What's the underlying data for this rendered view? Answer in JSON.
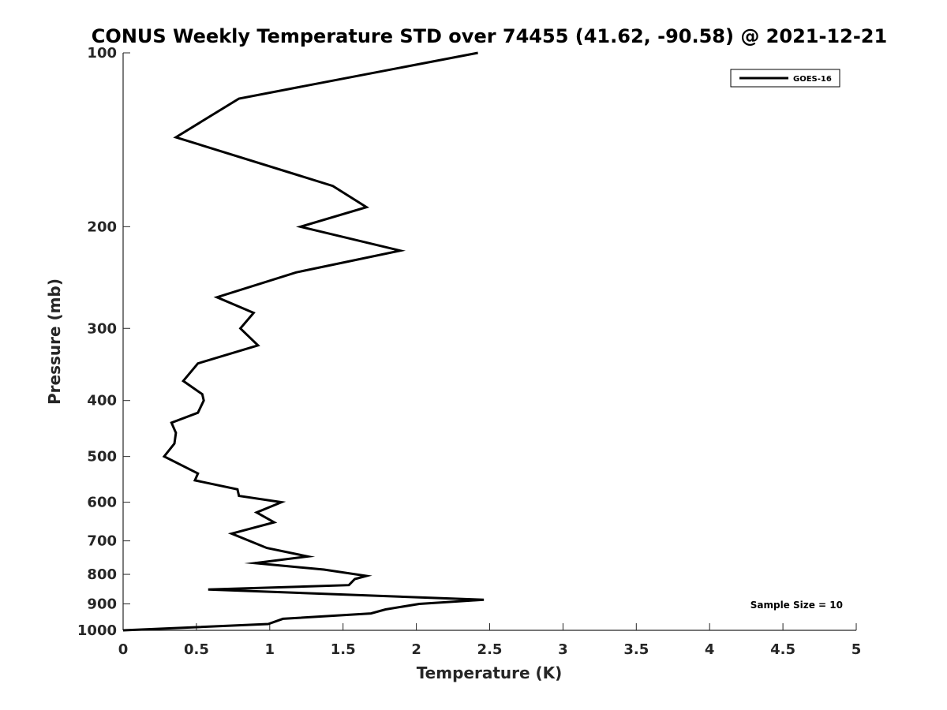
{
  "chart_data": {
    "type": "line",
    "title": "CONUS Weekly Temperature STD over 74455 (41.62, -90.58) @ 2021-12-21",
    "xlabel": "Temperature (K)",
    "ylabel": "Pressure (mb)",
    "xlim": [
      0,
      5
    ],
    "ylim": [
      1000,
      100
    ],
    "y_scale": "log",
    "y_inverted": true,
    "x_ticks": [
      0,
      0.5,
      1,
      1.5,
      2,
      2.5,
      3,
      3.5,
      4,
      4.5,
      5
    ],
    "x_tick_labels": [
      "0",
      "0.5",
      "1",
      "1.5",
      "2",
      "2.5",
      "3",
      "3.5",
      "4",
      "4.5",
      "5"
    ],
    "y_ticks": [
      100,
      200,
      300,
      400,
      500,
      600,
      700,
      800,
      900,
      1000
    ],
    "y_tick_labels": [
      "100",
      "200",
      "300",
      "400",
      "500",
      "600",
      "700",
      "800",
      "900",
      "1000"
    ],
    "grid": false,
    "legend_position": "top-right",
    "annotation": "Sample Size = 10",
    "series": [
      {
        "name": "GOES-16",
        "color": "#000000",
        "points": [
          [
            2.42,
            100
          ],
          [
            0.79,
            120
          ],
          [
            0.36,
            140
          ],
          [
            1.43,
            170
          ],
          [
            1.66,
            185
          ],
          [
            1.21,
            200
          ],
          [
            1.89,
            220
          ],
          [
            1.18,
            240
          ],
          [
            0.64,
            265
          ],
          [
            0.89,
            282
          ],
          [
            0.8,
            300
          ],
          [
            0.92,
            321
          ],
          [
            0.51,
            345
          ],
          [
            0.41,
            370
          ],
          [
            0.54,
            390
          ],
          [
            0.55,
            400
          ],
          [
            0.51,
            420
          ],
          [
            0.33,
            437
          ],
          [
            0.36,
            455
          ],
          [
            0.35,
            475
          ],
          [
            0.28,
            500
          ],
          [
            0.51,
            535
          ],
          [
            0.49,
            550
          ],
          [
            0.78,
            570
          ],
          [
            0.79,
            585
          ],
          [
            1.08,
            600
          ],
          [
            0.91,
            625
          ],
          [
            1.03,
            650
          ],
          [
            0.74,
            680
          ],
          [
            0.98,
            720
          ],
          [
            1.26,
            745
          ],
          [
            0.9,
            765
          ],
          [
            1.37,
            785
          ],
          [
            1.66,
            805
          ],
          [
            1.58,
            815
          ],
          [
            1.54,
            835
          ],
          [
            0.58,
            850
          ],
          [
            2.46,
            885
          ],
          [
            2.02,
            900
          ],
          [
            1.79,
            920
          ],
          [
            1.69,
            935
          ],
          [
            1.09,
            955
          ],
          [
            0.99,
            975
          ],
          [
            0.0,
            1000
          ]
        ]
      }
    ]
  }
}
